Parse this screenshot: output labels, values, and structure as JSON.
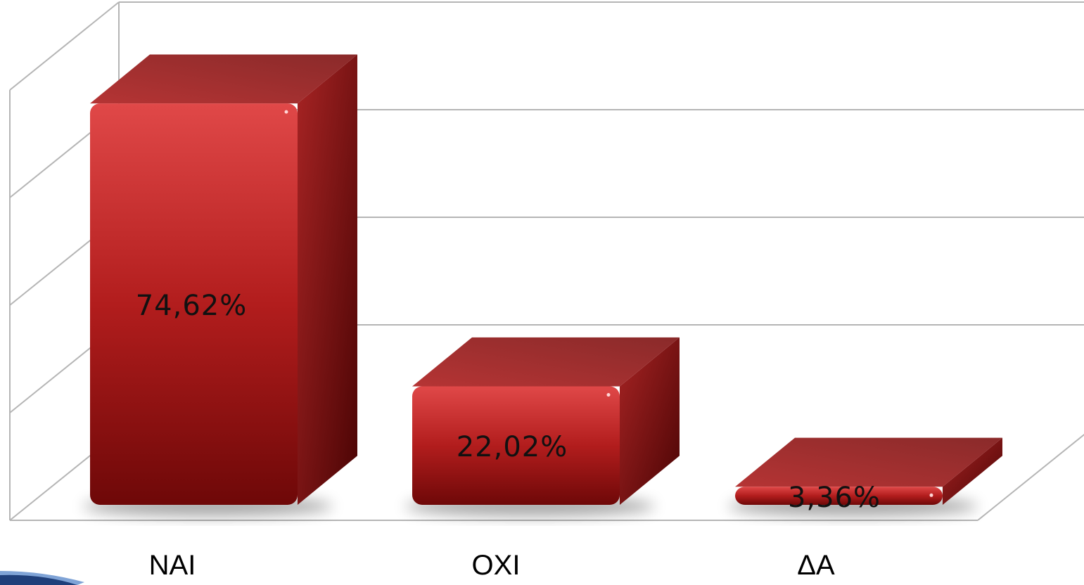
{
  "chart_data": {
    "type": "bar",
    "categories": [
      "NAI",
      "OXI",
      "ΔΑ"
    ],
    "values": [
      74.62,
      22.02,
      3.36
    ],
    "data_labels": [
      "74,62%",
      "22,02%",
      "3,36%"
    ],
    "title": "",
    "xlabel": "",
    "ylabel": "",
    "ylim": [
      0,
      80
    ],
    "grid": true,
    "style": "3d-column",
    "bar_color": "#b81e1e"
  }
}
